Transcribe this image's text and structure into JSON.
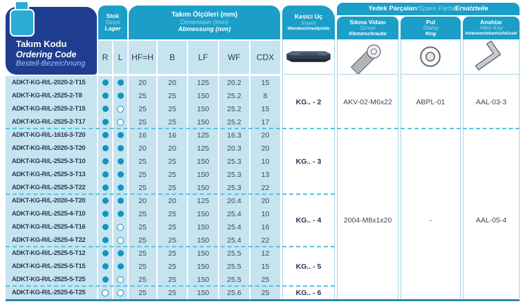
{
  "colors": {
    "teal_header": "#1B9EC7",
    "dark_blue": "#1E3C90",
    "row_blue": "#C6E3F0",
    "dot_teal": "#1095C1",
    "dash_teal": "#55C3DD",
    "bottom_line": "#2B86B8",
    "icon_blue": "#2CACD5"
  },
  "header": {
    "tool_code": {
      "tr": "Takım Kodu",
      "en": "Ordering Code",
      "de": "Bestell-Bezeichnung"
    },
    "stock": {
      "tr": "Stok",
      "en": "Stock",
      "de": "Lager"
    },
    "dimensions": {
      "tr": "Takım Ölçüleri (mm)",
      "en": "Dimension (mm)",
      "de": "Abmessung (mm)"
    },
    "insert": {
      "tr": "Kesici Uç",
      "en": "Insert",
      "de": "Wendeschneidplatte"
    },
    "spare_parts": {
      "tr": "Yedek Parçaları",
      "en": "Spare Parts",
      "de": "Ersatzteile",
      "sep": " / "
    },
    "screw": {
      "tr": "Sıkma Vidası",
      "en": "Screw",
      "de": "Klemmschraube"
    },
    "ring": {
      "tr": "Pul",
      "en": "Stamp",
      "de": "Ring"
    },
    "key": {
      "tr": "Anahtar",
      "en": "Allen Key",
      "de": "Innensechskantschlüssel"
    },
    "columns": [
      "R",
      "L",
      "HF=H",
      "B",
      "LF",
      "WF",
      "CDX"
    ]
  },
  "groups": [
    {
      "insert_code": "KG.. - 2",
      "rows": [
        {
          "code": "ADKT-KG-R/L-2020-2-T15",
          "r": "filled",
          "l": "filled",
          "hf": "20",
          "b": "20",
          "lf": "125",
          "wf": "20.2",
          "cdx": "15"
        },
        {
          "code": "ADKT-KG-R/L-2525-2-T8",
          "r": "filled",
          "l": "filled",
          "hf": "25",
          "b": "25",
          "lf": "150",
          "wf": "25.2",
          "cdx": "8"
        },
        {
          "code": "ADKT-KG-R/L-2525-2-T15",
          "r": "filled",
          "l": "open",
          "hf": "25",
          "b": "25",
          "lf": "150",
          "wf": "25.2",
          "cdx": "15"
        },
        {
          "code": "ADKT-KG-R/L-2525-2-T17",
          "r": "filled",
          "l": "open",
          "hf": "25",
          "b": "25",
          "lf": "150",
          "wf": "25.2",
          "cdx": "17"
        }
      ]
    },
    {
      "insert_code": "KG.. - 3",
      "rows": [
        {
          "code": "ADKT-KG-R/L-1616-3-T20",
          "r": "filled",
          "l": "filled",
          "hf": "16",
          "b": "16",
          "lf": "125",
          "wf": "16.3",
          "cdx": "20"
        },
        {
          "code": "ADKT-KG-R/L-2020-3-T20",
          "r": "filled",
          "l": "filled",
          "hf": "20",
          "b": "20",
          "lf": "125",
          "wf": "20.3",
          "cdx": "20"
        },
        {
          "code": "ADKT-KG-R/L-2525-3-T10",
          "r": "filled",
          "l": "filled",
          "hf": "25",
          "b": "25",
          "lf": "150",
          "wf": "25.3",
          "cdx": "10"
        },
        {
          "code": "ADKT-KG-R/L-2525-3-T13",
          "r": "filled",
          "l": "filled",
          "hf": "25",
          "b": "25",
          "lf": "150",
          "wf": "25.3",
          "cdx": "13"
        },
        {
          "code": "ADKT-KG-R/L-2525-3-T22",
          "r": "filled",
          "l": "filled",
          "hf": "25",
          "b": "25",
          "lf": "150",
          "wf": "25.3",
          "cdx": "22"
        }
      ]
    },
    {
      "insert_code": "KG.. - 4",
      "rows": [
        {
          "code": "ADKT-KG-R/L-2020-4-T20",
          "r": "filled",
          "l": "filled",
          "hf": "20",
          "b": "20",
          "lf": "125",
          "wf": "20.4",
          "cdx": "20"
        },
        {
          "code": "ADKT-KG-R/L-2525-4-T10",
          "r": "filled",
          "l": "filled",
          "hf": "25",
          "b": "25",
          "lf": "150",
          "wf": "25.4",
          "cdx": "10"
        },
        {
          "code": "ADKT-KG-R/L-2525-4-T16",
          "r": "filled",
          "l": "open",
          "hf": "25",
          "b": "25",
          "lf": "150",
          "wf": "25.4",
          "cdx": "16"
        },
        {
          "code": "ADKT-KG-R/L-2525-4-T22",
          "r": "filled",
          "l": "open",
          "hf": "25",
          "b": "25",
          "lf": "150",
          "wf": "25.4",
          "cdx": "22"
        }
      ]
    },
    {
      "insert_code": "KG.. - 5",
      "rows": [
        {
          "code": "ADKT-KG-R/L-2525-5-T12",
          "r": "filled",
          "l": "filled",
          "hf": "25",
          "b": "25",
          "lf": "150",
          "wf": "25.5",
          "cdx": "12"
        },
        {
          "code": "ADKT-KG-R/L-2525-5-T15",
          "r": "filled",
          "l": "filled",
          "hf": "25",
          "b": "25",
          "lf": "150",
          "wf": "25.5",
          "cdx": "15"
        },
        {
          "code": "ADKT-KG-R/L-2525-5-T25",
          "r": "filled",
          "l": "open",
          "hf": "25",
          "b": "25",
          "lf": "150",
          "wf": "25.5",
          "cdx": "25"
        }
      ]
    },
    {
      "insert_code": "KG.. - 6",
      "rows": [
        {
          "code": "ADKT-KG-R/L-2525-6-T25",
          "r": "open",
          "l": "open",
          "hf": "25",
          "b": "25",
          "lf": "150",
          "wf": "25.6",
          "cdx": "25"
        }
      ]
    }
  ],
  "spare_values": [
    {
      "screw": "AKV-02-M6x22",
      "ring": "ABPL-01",
      "key": "AAL-03-3"
    },
    {
      "screw": "2004-M8x1x20",
      "ring": "-",
      "key": "AAL-05-4"
    }
  ]
}
